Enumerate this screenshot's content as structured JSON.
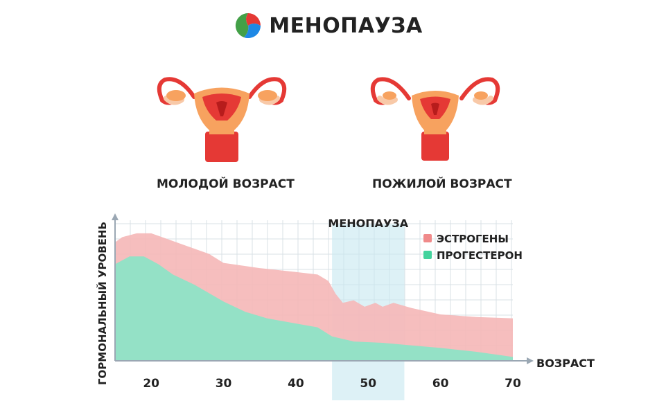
{
  "header": {
    "title": "МЕНОПАУЗА",
    "logo_icon": "tricolor-swirl-logo-icon"
  },
  "illustrations": [
    {
      "label": "МОЛОДОЙ ВОЗРАСТ",
      "icon": "uterus-young-icon"
    },
    {
      "label": "ПОЖИЛОЙ ВОЗРАСТ",
      "icon": "uterus-old-icon"
    }
  ],
  "chart_data": {
    "type": "area",
    "title": "",
    "xlabel": "ВОЗРАСТ",
    "ylabel": "ГОРМОНАЛЬНЫЙ УРОВЕНЬ",
    "x_ticks": [
      20,
      30,
      40,
      50,
      60,
      70
    ],
    "xlim": [
      15,
      70
    ],
    "ylim": [
      0,
      100
    ],
    "grid": true,
    "legend_position": "top-right",
    "highlight": {
      "label": "МЕНОПАУЗА",
      "x_range": [
        45,
        55
      ]
    },
    "series": [
      {
        "name": "ЭСТРОГЕНЫ",
        "color": "#f5b8b8",
        "marker_color": "#f08a8a",
        "points": [
          [
            15,
            92
          ],
          [
            16,
            96
          ],
          [
            18,
            99
          ],
          [
            20,
            99
          ],
          [
            22,
            95
          ],
          [
            25,
            89
          ],
          [
            28,
            83
          ],
          [
            30,
            76
          ],
          [
            35,
            72
          ],
          [
            40,
            69
          ],
          [
            43,
            67
          ],
          [
            44.5,
            62
          ],
          [
            45.5,
            52
          ],
          [
            46.5,
            45
          ],
          [
            48,
            47
          ],
          [
            49.5,
            42
          ],
          [
            51,
            45
          ],
          [
            52,
            42
          ],
          [
            53.5,
            45
          ],
          [
            56,
            41
          ],
          [
            60,
            36
          ],
          [
            65,
            34
          ],
          [
            70,
            33
          ]
        ]
      },
      {
        "name": "ПРОГЕСТЕРОН",
        "color": "#8ee3c6",
        "marker_color": "#43d39d",
        "points": [
          [
            15,
            75
          ],
          [
            17,
            81
          ],
          [
            19,
            81
          ],
          [
            21,
            75
          ],
          [
            23,
            67
          ],
          [
            26,
            59
          ],
          [
            30,
            46
          ],
          [
            33,
            38
          ],
          [
            36,
            33
          ],
          [
            40,
            29
          ],
          [
            43,
            26
          ],
          [
            45,
            19
          ],
          [
            48,
            15
          ],
          [
            52,
            14
          ],
          [
            56,
            12
          ],
          [
            60,
            10
          ],
          [
            65,
            7
          ],
          [
            70,
            3
          ]
        ]
      }
    ]
  }
}
